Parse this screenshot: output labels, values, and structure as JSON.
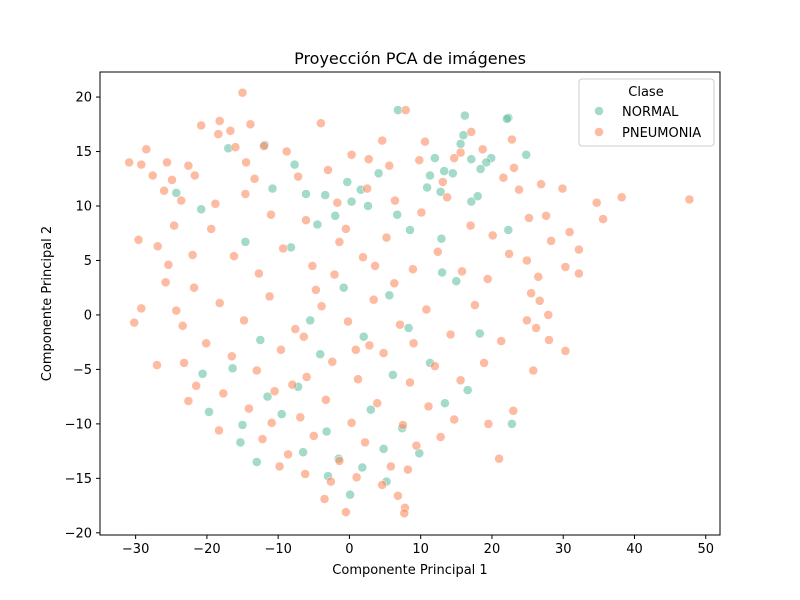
{
  "chart_data": {
    "type": "scatter",
    "title": "Proyección PCA de imágenes",
    "xlabel": "Componente Principal 1",
    "ylabel": "Componente Principal 2",
    "xlim": [
      -35,
      52
    ],
    "ylim": [
      -20.2,
      22.3
    ],
    "xticks": [
      -30,
      -20,
      -10,
      0,
      10,
      20,
      30,
      40,
      50
    ],
    "yticks": [
      -20,
      -15,
      -10,
      -5,
      0,
      5,
      10,
      15,
      20
    ],
    "grid": false,
    "legend": {
      "title": "Clase",
      "placement": "top-right"
    },
    "series": [
      {
        "name": "NORMAL",
        "color": "#66c2a5",
        "points": [
          [
            6.8,
            18.8
          ],
          [
            16.2,
            18.3
          ],
          [
            22.3,
            18.1
          ],
          [
            22.1,
            18.0
          ],
          [
            16.0,
            16.5
          ],
          [
            15.6,
            15.7
          ],
          [
            24.8,
            14.7
          ],
          [
            17.1,
            14.3
          ],
          [
            19.9,
            14.4
          ],
          [
            19.2,
            14.0
          ],
          [
            18.4,
            13.4
          ],
          [
            -17.0,
            15.3
          ],
          [
            -11.9,
            15.6
          ],
          [
            -7.7,
            13.8
          ],
          [
            12.0,
            14.4
          ],
          [
            13.3,
            13.2
          ],
          [
            11.3,
            12.8
          ],
          [
            14.5,
            13.0
          ],
          [
            -0.3,
            12.2
          ],
          [
            4.1,
            13.0
          ],
          [
            1.6,
            11.5
          ],
          [
            -10.8,
            11.6
          ],
          [
            -6.1,
            11.1
          ],
          [
            -3.4,
            11.0
          ],
          [
            10.9,
            11.7
          ],
          [
            12.8,
            11.3
          ],
          [
            17.1,
            10.4
          ],
          [
            18.0,
            10.9
          ],
          [
            0.3,
            10.4
          ],
          [
            2.6,
            10.0
          ],
          [
            6.7,
            9.2
          ],
          [
            -2.0,
            9.1
          ],
          [
            -4.5,
            8.3
          ],
          [
            8.5,
            7.8
          ],
          [
            12.9,
            7.0
          ],
          [
            -20.8,
            9.7
          ],
          [
            -24.3,
            11.2
          ],
          [
            22.3,
            7.8
          ],
          [
            -14.6,
            6.7
          ],
          [
            -8.2,
            6.2
          ],
          [
            13.0,
            3.9
          ],
          [
            -0.8,
            2.5
          ],
          [
            5.6,
            1.8
          ],
          [
            15.0,
            3.1
          ],
          [
            -5.5,
            -0.5
          ],
          [
            8.3,
            -1.2
          ],
          [
            -12.5,
            -2.3
          ],
          [
            2.0,
            -2.0
          ],
          [
            18.3,
            -1.7
          ],
          [
            -4.1,
            -3.6
          ],
          [
            11.3,
            -4.4
          ],
          [
            -16.4,
            -4.9
          ],
          [
            -20.6,
            -5.4
          ],
          [
            6.1,
            -5.5
          ],
          [
            -7.2,
            -6.6
          ],
          [
            16.6,
            -6.9
          ],
          [
            -19.7,
            -8.9
          ],
          [
            -11.5,
            -7.5
          ],
          [
            -9.5,
            -9.1
          ],
          [
            3.0,
            -8.7
          ],
          [
            13.4,
            -8.1
          ],
          [
            -15.0,
            -10.1
          ],
          [
            22.8,
            -10.0
          ],
          [
            -3.2,
            -10.7
          ],
          [
            7.4,
            -10.4
          ],
          [
            -15.3,
            -11.7
          ],
          [
            -6.5,
            -12.6
          ],
          [
            4.8,
            -12.3
          ],
          [
            -1.5,
            -13.2
          ],
          [
            -13.0,
            -13.5
          ],
          [
            1.8,
            -14.0
          ],
          [
            9.8,
            -12.7
          ],
          [
            -3.0,
            -14.8
          ],
          [
            5.2,
            -15.3
          ],
          [
            0.1,
            -16.5
          ]
        ]
      },
      {
        "name": "PNEUMONIA",
        "color": "#fc8d62",
        "points": [
          [
            -15.0,
            20.4
          ],
          [
            7.9,
            18.8
          ],
          [
            -18.2,
            17.8
          ],
          [
            -20.8,
            17.4
          ],
          [
            -13.9,
            17.5
          ],
          [
            -4.0,
            17.6
          ],
          [
            -16.7,
            16.9
          ],
          [
            -18.4,
            16.6
          ],
          [
            17.1,
            16.8
          ],
          [
            22.8,
            16.1
          ],
          [
            -28.5,
            15.2
          ],
          [
            -16.0,
            15.4
          ],
          [
            -12.0,
            15.5
          ],
          [
            -30.9,
            14.0
          ],
          [
            0.3,
            14.7
          ],
          [
            -25.6,
            14.0
          ],
          [
            2.7,
            14.3
          ],
          [
            -22.6,
            13.7
          ],
          [
            -14.5,
            14.0
          ],
          [
            18.7,
            15.2
          ],
          [
            15.6,
            14.9
          ],
          [
            23.1,
            13.5
          ],
          [
            -27.6,
            12.8
          ],
          [
            -24.9,
            12.4
          ],
          [
            -21.7,
            12.8
          ],
          [
            -7.2,
            12.7
          ],
          [
            5.6,
            13.7
          ],
          [
            9.8,
            14.2
          ],
          [
            14.7,
            14.4
          ],
          [
            26.9,
            12.0
          ],
          [
            -29.2,
            13.8
          ],
          [
            -26.0,
            11.4
          ],
          [
            -23.6,
            10.5
          ],
          [
            29.9,
            11.6
          ],
          [
            34.7,
            10.3
          ],
          [
            38.2,
            10.8
          ],
          [
            47.7,
            10.6
          ],
          [
            35.6,
            8.8
          ],
          [
            27.6,
            9.1
          ],
          [
            25.2,
            8.9
          ],
          [
            30.9,
            7.6
          ],
          [
            32.2,
            6.0
          ],
          [
            28.3,
            6.8
          ],
          [
            -29.6,
            6.9
          ],
          [
            -26.9,
            6.3
          ],
          [
            -25.4,
            4.6
          ],
          [
            24.9,
            5.0
          ],
          [
            26.5,
            3.5
          ],
          [
            30.3,
            4.4
          ],
          [
            32.2,
            3.8
          ],
          [
            -30.2,
            -0.7
          ],
          [
            -29.2,
            0.6
          ],
          [
            -24.3,
            0.4
          ],
          [
            25.5,
            2.0
          ],
          [
            26.7,
            1.3
          ],
          [
            27.9,
            0.0
          ],
          [
            26.2,
            -1.2
          ],
          [
            24.9,
            -0.5
          ],
          [
            28.0,
            -2.3
          ],
          [
            30.3,
            -3.3
          ],
          [
            -27.0,
            -4.6
          ],
          [
            -23.2,
            -4.4
          ],
          [
            25.8,
            -5.1
          ],
          [
            -22.6,
            -7.9
          ],
          [
            23.0,
            -8.8
          ],
          [
            19.5,
            -10.0
          ],
          [
            -18.3,
            -10.6
          ],
          [
            21.0,
            -13.2
          ],
          [
            6.8,
            -16.6
          ],
          [
            -3.5,
            -16.9
          ],
          [
            7.8,
            -17.7
          ],
          [
            -0.5,
            -18.1
          ],
          [
            7.7,
            -18.2
          ],
          [
            -14.6,
            11.1
          ],
          [
            -11.0,
            9.2
          ],
          [
            -6.1,
            8.7
          ],
          [
            -1.7,
            10.3
          ],
          [
            2.5,
            11.6
          ],
          [
            6.4,
            10.5
          ],
          [
            10.1,
            9.4
          ],
          [
            13.7,
            10.8
          ],
          [
            17.0,
            8.2
          ],
          [
            20.1,
            7.3
          ],
          [
            22.4,
            5.6
          ],
          [
            -19.4,
            7.9
          ],
          [
            -16.2,
            5.4
          ],
          [
            -12.7,
            3.8
          ],
          [
            -9.3,
            6.1
          ],
          [
            -5.2,
            4.5
          ],
          [
            -1.4,
            6.7
          ],
          [
            1.9,
            5.3
          ],
          [
            5.2,
            7.1
          ],
          [
            8.9,
            4.2
          ],
          [
            12.4,
            5.8
          ],
          [
            15.8,
            4.0
          ],
          [
            19.4,
            3.3
          ],
          [
            -21.8,
            2.5
          ],
          [
            -18.2,
            1.1
          ],
          [
            -14.8,
            -0.5
          ],
          [
            -11.2,
            1.7
          ],
          [
            -7.6,
            -1.3
          ],
          [
            -3.9,
            0.8
          ],
          [
            -0.2,
            -0.6
          ],
          [
            3.4,
            1.4
          ],
          [
            7.1,
            -0.9
          ],
          [
            10.8,
            0.5
          ],
          [
            14.2,
            -1.8
          ],
          [
            17.6,
            0.9
          ],
          [
            21.3,
            -2.4
          ],
          [
            -20.1,
            -2.6
          ],
          [
            -16.5,
            -3.8
          ],
          [
            -13.0,
            -5.1
          ],
          [
            -9.6,
            -3.2
          ],
          [
            -6.0,
            -5.7
          ],
          [
            -2.4,
            -4.3
          ],
          [
            1.2,
            -5.9
          ],
          [
            4.8,
            -3.5
          ],
          [
            8.5,
            -6.2
          ],
          [
            12.0,
            -4.7
          ],
          [
            15.6,
            -6.0
          ],
          [
            18.9,
            -4.4
          ],
          [
            -17.7,
            -7.2
          ],
          [
            -14.1,
            -8.6
          ],
          [
            -10.5,
            -7.0
          ],
          [
            -6.9,
            -9.4
          ],
          [
            -3.3,
            -7.8
          ],
          [
            0.3,
            -9.9
          ],
          [
            3.9,
            -8.1
          ],
          [
            7.5,
            -10.1
          ],
          [
            11.1,
            -8.4
          ],
          [
            14.7,
            -9.6
          ],
          [
            -12.2,
            -11.4
          ],
          [
            -8.6,
            -12.8
          ],
          [
            -5.0,
            -11.1
          ],
          [
            -1.4,
            -13.4
          ],
          [
            2.2,
            -11.7
          ],
          [
            5.8,
            -13.9
          ],
          [
            9.4,
            -12.0
          ],
          [
            12.8,
            -11.2
          ],
          [
            -9.8,
            -13.9
          ],
          [
            -6.2,
            -14.6
          ],
          [
            -2.6,
            -15.3
          ],
          [
            1.0,
            -14.9
          ],
          [
            4.6,
            -15.6
          ],
          [
            8.2,
            -14.2
          ],
          [
            -24.6,
            8.2
          ],
          [
            -22.0,
            5.5
          ],
          [
            -25.8,
            3.0
          ],
          [
            -23.4,
            -1.0
          ],
          [
            -21.5,
            -6.5
          ],
          [
            23.8,
            11.5
          ],
          [
            21.6,
            12.6
          ],
          [
            -8.8,
            15.0
          ],
          [
            4.6,
            16.0
          ],
          [
            10.6,
            15.9
          ],
          [
            -3.0,
            13.3
          ],
          [
            -13.3,
            12.5
          ],
          [
            13.1,
            12.2
          ],
          [
            -18.8,
            10.2
          ],
          [
            -0.5,
            7.9
          ],
          [
            -4.7,
            2.3
          ],
          [
            2.8,
            -2.8
          ],
          [
            -8.0,
            -6.4
          ],
          [
            6.3,
            2.9
          ],
          [
            -2.1,
            3.7
          ],
          [
            0.9,
            -3.2
          ],
          [
            3.6,
            4.5
          ],
          [
            -6.4,
            -2.0
          ],
          [
            9.0,
            -2.6
          ],
          [
            -10.9,
            -9.9
          ]
        ]
      }
    ]
  }
}
